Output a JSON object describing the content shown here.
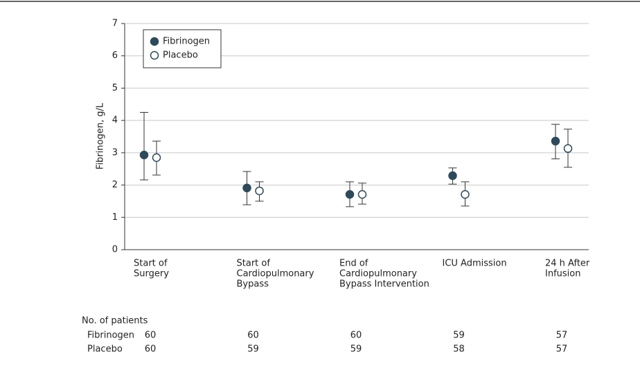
{
  "chart_data": {
    "type": "errorbar",
    "y_label": "Fibrinogen, g/L",
    "categories": [
      [
        "Start of",
        "Surgery"
      ],
      [
        "Start of",
        "Cardiopulmonary",
        "Bypass"
      ],
      [
        "End of",
        "Cardiopulmonary",
        "Bypass Intervention"
      ],
      [
        "ICU Admission"
      ],
      [
        "24 h After",
        "Infusion"
      ]
    ],
    "series": [
      {
        "name": "Fibrinogen",
        "color": "#2d4a5b",
        "marker": "filled",
        "values": [
          2.93,
          1.91,
          1.71,
          2.29,
          3.36
        ],
        "low": [
          2.16,
          1.39,
          1.33,
          2.03,
          2.81
        ],
        "high": [
          4.25,
          2.42,
          2.1,
          2.53,
          3.88
        ]
      },
      {
        "name": "Placebo",
        "color": "#2d4a5b",
        "marker": "open",
        "values": [
          2.85,
          1.82,
          1.71,
          1.71,
          3.13
        ],
        "low": [
          2.31,
          1.5,
          1.41,
          1.35,
          2.55
        ],
        "high": [
          3.36,
          2.1,
          2.06,
          2.1,
          3.73
        ]
      }
    ],
    "ylim": [
      0,
      7
    ],
    "yticks": [
      0,
      1,
      2,
      3,
      4,
      5,
      6,
      7
    ],
    "grid": true,
    "legend": "upper left",
    "patients": {
      "title": "No. of patients",
      "rows": [
        {
          "name": "Fibrinogen",
          "values": [
            60,
            60,
            60,
            59,
            57
          ]
        },
        {
          "name": "Placebo",
          "values": [
            60,
            59,
            59,
            58,
            57
          ]
        }
      ]
    }
  }
}
